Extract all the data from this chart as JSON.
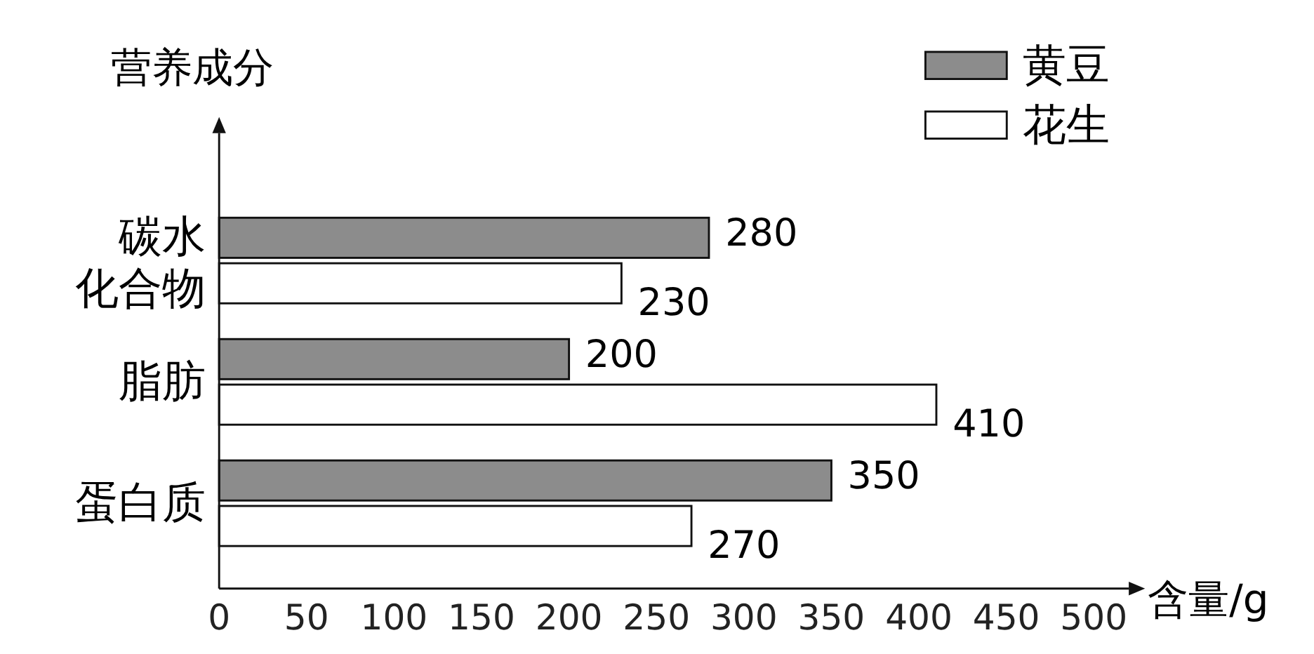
{
  "chart_data": {
    "type": "bar",
    "orientation": "horizontal",
    "xlabel": "含量/g",
    "ylabel": "营养成分",
    "categories": [
      "碳水化合物",
      "脂肪",
      "蛋白质"
    ],
    "series": [
      {
        "name": "黄豆",
        "color": "#8c8c8c",
        "values": [
          280,
          200,
          350
        ]
      },
      {
        "name": "花生",
        "color": "#ffffff",
        "values": [
          230,
          410,
          270
        ]
      }
    ],
    "xlim": [
      0,
      520
    ],
    "xticks": [
      0,
      50,
      100,
      150,
      200,
      250,
      300,
      350,
      400,
      450,
      500
    ],
    "data_labels": true,
    "legend": "top right",
    "grid": false
  }
}
